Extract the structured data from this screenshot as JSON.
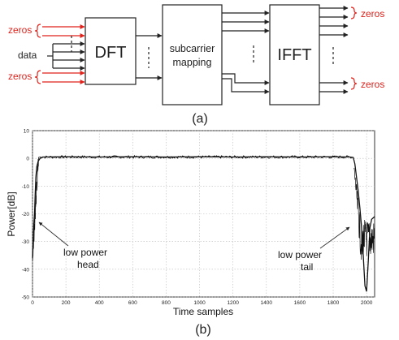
{
  "diagram": {
    "labels": {
      "zeros_in": "zeros",
      "data": "data",
      "dft": "DFT",
      "subcarrier_line1": "subcarrier",
      "subcarrier_line2": "mapping",
      "ifft": "IFFT",
      "zeros_out": "zeros",
      "caption": "(a)"
    },
    "colors": {
      "accent": "#e0221b",
      "stroke": "#222222"
    }
  },
  "plot": {
    "caption": "(b)",
    "annotations": {
      "head_line1": "low power",
      "head_line2": "head",
      "tail_line1": "low power",
      "tail_line2": "tail"
    },
    "chart_data": {
      "type": "line",
      "xlabel": "Time samples",
      "ylabel": "Power[dB]",
      "xlim": [
        0,
        2048
      ],
      "ylim": [
        -50,
        10
      ],
      "grid": true,
      "xticks": [
        "0",
        "200",
        "400",
        "600",
        "800",
        "1000",
        "1200",
        "1400",
        "1600",
        "1800",
        "2000"
      ],
      "yticks": [
        "10",
        "0",
        "-10",
        "-20",
        "-30",
        "-40",
        "-50"
      ],
      "series": [
        {
          "points": [
            [
              0,
              -36
            ],
            [
              4,
              -30
            ],
            [
              8,
              -24
            ],
            [
              12,
              -20
            ],
            [
              16,
              -13
            ],
            [
              20,
              -7
            ],
            [
              26,
              -3
            ],
            [
              34,
              -1
            ],
            [
              45,
              0
            ],
            [
              60,
              0.5
            ],
            [
              200,
              0.6
            ],
            [
              400,
              0.5
            ],
            [
              600,
              0.6
            ],
            [
              800,
              0.5
            ],
            [
              1000,
              0.6
            ],
            [
              1200,
              0.5
            ],
            [
              1400,
              0.6
            ],
            [
              1600,
              0.5
            ],
            [
              1800,
              0.6
            ],
            [
              1900,
              0.5
            ],
            [
              1920,
              0.3
            ],
            [
              1930,
              -2
            ],
            [
              1940,
              -7
            ],
            [
              1950,
              -12
            ],
            [
              1960,
              -18
            ],
            [
              1970,
              -25
            ],
            [
              1980,
              -35
            ],
            [
              1990,
              -46
            ],
            [
              2000,
              -48
            ],
            [
              2010,
              -37
            ],
            [
              2020,
              -25
            ],
            [
              2030,
              -22
            ],
            [
              2048,
              -21
            ]
          ]
        }
      ]
    }
  }
}
